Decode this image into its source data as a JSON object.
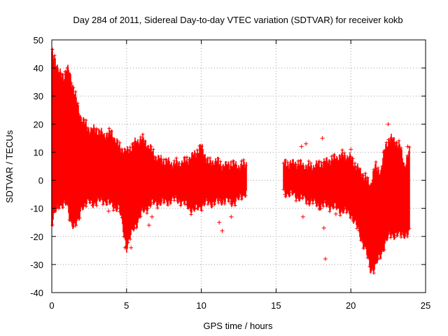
{
  "chart_data": {
    "type": "scatter",
    "title": "Day 284 of 2011, Sidereal Day-to-day VTEC variation (SDTVAR) for receiver kokb",
    "xlabel": "GPS time / hours",
    "ylabel": "SDTVAR / TECUs",
    "xlim": [
      0,
      25
    ],
    "ylim": [
      -40,
      50
    ],
    "xticks": [
      0,
      5,
      10,
      15,
      20,
      25
    ],
    "yticks": [
      -40,
      -30,
      -20,
      -10,
      0,
      10,
      20,
      30,
      40,
      50
    ],
    "grid": true,
    "marker": "+",
    "color": "#ff0000",
    "envelope": {
      "description": "dense band of points; upper and lower bounds per hour",
      "segments": [
        {
          "x": [
            0.0,
            0.2,
            0.5,
            0.8,
            1.0,
            1.2,
            1.5,
            1.8,
            2.0,
            2.5,
            3.0,
            3.5,
            4.0,
            4.5,
            5.0,
            5.5,
            6.0,
            6.5,
            7.0,
            7.5,
            8.0,
            8.5,
            9.0,
            9.5,
            10.0,
            10.5,
            11.0,
            11.5,
            12.0,
            12.5,
            13.0
          ],
          "upper": [
            45,
            44,
            38,
            37,
            40,
            38,
            32,
            25,
            22,
            18,
            18,
            16,
            17,
            12,
            10,
            13,
            15,
            12,
            8,
            7,
            6,
            6,
            7,
            9,
            12,
            6,
            7,
            5,
            6,
            5,
            6
          ],
          "lower": [
            -15,
            -12,
            -9,
            -8,
            -9,
            -14,
            -16,
            -15,
            -9,
            -8,
            -8,
            -7,
            -9,
            -10,
            -24,
            -17,
            -12,
            -9,
            -8,
            -8,
            -7,
            -7,
            -9,
            -11,
            -9,
            -8,
            -8,
            -7,
            -8,
            -7,
            -4
          ]
        },
        {
          "x": [
            15.5,
            16.0,
            16.5,
            17.0,
            17.5,
            18.0,
            18.5,
            19.0,
            19.5,
            20.0,
            20.5,
            21.0,
            21.3,
            21.6,
            22.0,
            22.3,
            22.6,
            23.0,
            23.3,
            23.6,
            23.9
          ],
          "upper": [
            6,
            6,
            6,
            5,
            5,
            6,
            7,
            8,
            9,
            8,
            4,
            1,
            -2,
            5,
            3,
            12,
            15,
            14,
            12,
            5,
            10
          ],
          "lower": [
            -4,
            -5,
            -6,
            -7,
            -8,
            -9,
            -9,
            -10,
            -11,
            -12,
            -18,
            -25,
            -32,
            -31,
            -27,
            -22,
            -20,
            -19,
            -20,
            -19,
            -19
          ]
        }
      ]
    },
    "outliers": [
      {
        "x": 0.4,
        "y": -9
      },
      {
        "x": 1.6,
        "y": -16
      },
      {
        "x": 3.8,
        "y": -11
      },
      {
        "x": 4.9,
        "y": -24
      },
      {
        "x": 5.3,
        "y": -24
      },
      {
        "x": 6.4,
        "y": -10
      },
      {
        "x": 6.5,
        "y": -16
      },
      {
        "x": 6.7,
        "y": -13
      },
      {
        "x": 11.2,
        "y": -15
      },
      {
        "x": 11.4,
        "y": -18
      },
      {
        "x": 12.0,
        "y": -13
      },
      {
        "x": 15.6,
        "y": -5
      },
      {
        "x": 16.7,
        "y": 12
      },
      {
        "x": 16.8,
        "y": -13
      },
      {
        "x": 17.0,
        "y": 13
      },
      {
        "x": 18.0,
        "y": -10
      },
      {
        "x": 18.1,
        "y": 15
      },
      {
        "x": 18.2,
        "y": -17
      },
      {
        "x": 18.3,
        "y": -28
      },
      {
        "x": 19.0,
        "y": -12
      },
      {
        "x": 20.0,
        "y": 11
      },
      {
        "x": 22.5,
        "y": 20
      },
      {
        "x": 22.2,
        "y": 10
      },
      {
        "x": 23.8,
        "y": 12
      }
    ]
  }
}
